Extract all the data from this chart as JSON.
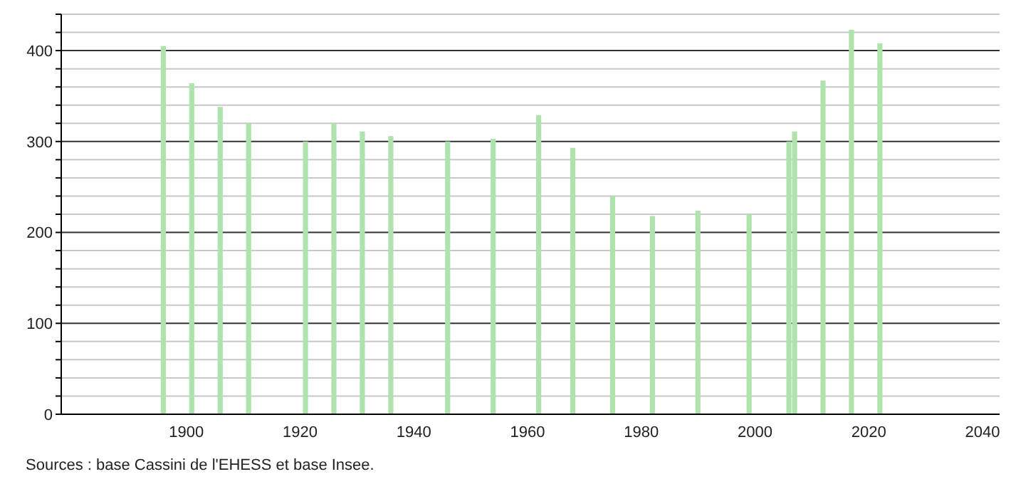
{
  "chart_data": {
    "type": "bar",
    "x": [
      1896,
      1901,
      1906,
      1911,
      1921,
      1926,
      1931,
      1936,
      1946,
      1954,
      1962,
      1968,
      1975,
      1982,
      1990,
      1999,
      2006,
      2007,
      2012,
      2017,
      2022
    ],
    "values": [
      405,
      364,
      338,
      320,
      300,
      320,
      311,
      306,
      300,
      303,
      329,
      293,
      240,
      218,
      224,
      220,
      300,
      311,
      367,
      423,
      408
    ],
    "color": "#aee3ae",
    "xlim": [
      1878,
      2043
    ],
    "xticks": [
      1900,
      1920,
      1940,
      1960,
      1980,
      2000,
      2020,
      2040
    ],
    "ylim": [
      0,
      440
    ],
    "yticks": [
      0,
      {
        "value": 20,
        "label": null
      },
      {
        "value": 40,
        "label": null
      },
      {
        "value": 60,
        "label": null
      },
      {
        "value": 80,
        "label": null
      },
      100,
      {
        "value": 120,
        "label": null
      },
      {
        "value": 140,
        "label": null
      },
      {
        "value": 160,
        "label": null
      },
      {
        "value": 180,
        "label": null
      },
      200,
      {
        "value": 220,
        "label": null
      },
      {
        "value": 240,
        "label": null
      },
      {
        "value": 260,
        "label": null
      },
      {
        "value": 280,
        "label": null
      },
      300,
      {
        "value": 320,
        "label": null
      },
      {
        "value": 340,
        "label": null
      },
      {
        "value": 360,
        "label": null
      },
      {
        "value": 380,
        "label": null
      },
      400,
      {
        "value": 420,
        "label": null
      },
      {
        "value": 440,
        "label": null
      }
    ],
    "grid": "y",
    "annotations": [
      "Sources : base Cassini de l'EHESS et base Insee."
    ]
  }
}
